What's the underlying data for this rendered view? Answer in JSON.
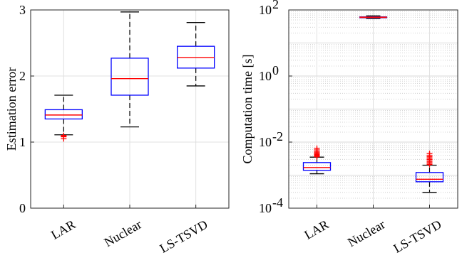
{
  "chart_data": [
    {
      "type": "box",
      "categories": [
        "LAR",
        "Nuclear",
        "LS-TSVD"
      ],
      "ylabel": "Estimation error",
      "ylim": [
        0,
        3
      ],
      "yscale": "linear",
      "yticks": [
        "0",
        "1",
        "2",
        "3"
      ],
      "grid": true,
      "colors": {
        "box": "#0000ff",
        "median": "#ff0000",
        "whisker": "#000000",
        "outlier": "#ff0000"
      },
      "boxes": [
        {
          "category": "LAR",
          "whisker_low": 1.11,
          "q1": 1.35,
          "median": 1.41,
          "q3": 1.49,
          "whisker_high": 1.71,
          "outliers": [
            1.05,
            1.08,
            1.09,
            1.1
          ]
        },
        {
          "category": "Nuclear",
          "whisker_low": 1.23,
          "q1": 1.71,
          "median": 1.96,
          "q3": 2.27,
          "whisker_high": 2.97,
          "outliers": []
        },
        {
          "category": "LS-TSVD",
          "whisker_low": 1.85,
          "q1": 2.12,
          "median": 2.28,
          "q3": 2.45,
          "whisker_high": 2.81,
          "outliers": []
        }
      ]
    },
    {
      "type": "box",
      "categories": [
        "LAR",
        "Nuclear",
        "LS-TSVD"
      ],
      "ylabel": "Computation time [s]",
      "ylim": [
        0.0001,
        100
      ],
      "yscale": "log",
      "yticks": [
        {
          "base": "10",
          "exp": "-4"
        },
        {
          "base": "10",
          "exp": "-2"
        },
        {
          "base": "10",
          "exp": "0"
        },
        {
          "base": "10",
          "exp": "2"
        }
      ],
      "grid": true,
      "colors": {
        "box": "#0000ff",
        "median": "#ff0000",
        "whisker": "#000000",
        "outlier": "#ff0000",
        "nuclear_box": "#7030a0"
      },
      "boxes": [
        {
          "category": "LAR",
          "whisker_low": 0.0011,
          "q1": 0.0014,
          "median": 0.0017,
          "q3": 0.0024,
          "whisker_high": 0.0035,
          "outliers": [
            0.0036,
            0.0038,
            0.004,
            0.0042,
            0.0045,
            0.0048,
            0.0052,
            0.0058,
            0.0065
          ]
        },
        {
          "category": "Nuclear",
          "whisker_low": 55,
          "q1": 58,
          "median": 60,
          "q3": 62,
          "whisker_high": 66,
          "outliers": []
        },
        {
          "category": "LS-TSVD",
          "whisker_low": 0.0003,
          "q1": 0.00063,
          "median": 0.00075,
          "q3": 0.0012,
          "whisker_high": 0.002,
          "outliers": [
            0.0021,
            0.0023,
            0.0025,
            0.0027,
            0.003,
            0.0033,
            0.0036,
            0.004,
            0.0045
          ]
        }
      ]
    }
  ]
}
